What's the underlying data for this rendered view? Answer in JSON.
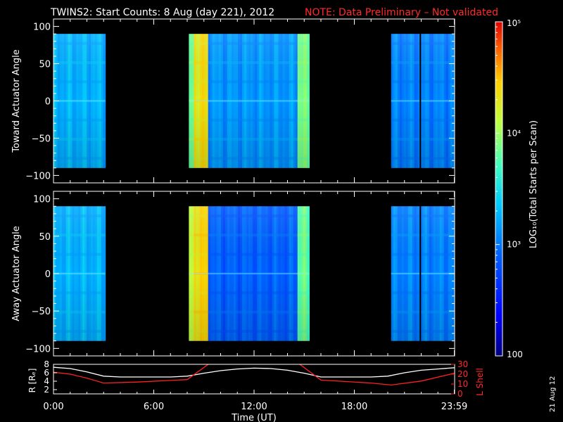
{
  "header": {
    "title": "TWINS2: Start Counts:  8 Aug (day 221), 2012",
    "note": "NOTE: Data Preliminary – Not validated"
  },
  "colors": {
    "background": "#000000",
    "axis": "#ffffff",
    "note": "#ff2a2a",
    "l_shell_line": "#ff2020",
    "r_line": "#ffffff"
  },
  "chart_data": [
    {
      "type": "heatmap",
      "panel": "toward",
      "ylabel": "Toward Actuator Angle",
      "ylim": [
        -110,
        110
      ],
      "yticks": [
        100,
        50,
        0,
        -50,
        -100
      ],
      "data_range": [
        -90,
        90
      ],
      "xlim": [
        0,
        24
      ],
      "blocks": [
        {
          "start": 0.0,
          "end": 3.1,
          "level": 0.42
        },
        {
          "start": 8.1,
          "end": 8.4,
          "level": 0.62
        },
        {
          "start": 8.4,
          "end": 9.25,
          "level": 0.78
        },
        {
          "start": 9.25,
          "end": 14.6,
          "level": 0.38
        },
        {
          "start": 14.6,
          "end": 15.3,
          "level": 0.62
        },
        {
          "start": 20.2,
          "end": 23.99,
          "level": 0.35
        }
      ],
      "gaps": [
        21.95
      ]
    },
    {
      "type": "heatmap",
      "panel": "away",
      "ylabel": "Away Actuator Angle",
      "ylim": [
        -110,
        110
      ],
      "yticks": [
        100,
        50,
        0,
        -50,
        -100
      ],
      "data_range": [
        -90,
        90
      ],
      "xlim": [
        0,
        24
      ],
      "blocks": [
        {
          "start": 0.0,
          "end": 3.1,
          "level": 0.42
        },
        {
          "start": 8.1,
          "end": 8.4,
          "level": 0.7
        },
        {
          "start": 8.4,
          "end": 9.25,
          "level": 0.8
        },
        {
          "start": 9.25,
          "end": 14.6,
          "level": 0.3
        },
        {
          "start": 14.6,
          "end": 15.3,
          "level": 0.6
        },
        {
          "start": 20.2,
          "end": 23.99,
          "level": 0.35
        }
      ],
      "gaps": [
        21.95
      ]
    },
    {
      "type": "line",
      "panel": "orbit",
      "ylabel": "R [Rₑ]",
      "y2label": "L Shell",
      "xlabel": "Time (UT)",
      "xlim": [
        0,
        24
      ],
      "ylim": [
        1,
        8
      ],
      "yticks": [
        2,
        4,
        6,
        8
      ],
      "y2lim": [
        0,
        30
      ],
      "y2ticks": [
        0,
        10,
        20,
        30
      ],
      "xticks": [
        "0:00",
        "6:00",
        "12:00",
        "18:00",
        "23:59"
      ],
      "xtick_values": [
        0,
        6,
        12,
        18,
        23.98
      ],
      "series": [
        {
          "name": "R [Rₑ]",
          "axis": "left",
          "x": [
            0,
            1,
            2,
            3,
            4,
            5,
            6,
            7,
            8,
            9,
            10,
            11,
            12,
            13,
            14,
            15,
            16,
            17,
            18,
            19,
            20,
            21,
            22,
            23,
            24
          ],
          "y": [
            7.3,
            7.0,
            6.2,
            5.2,
            5.0,
            5.0,
            5.0,
            5.0,
            5.2,
            5.9,
            6.5,
            6.9,
            7.1,
            7.0,
            6.6,
            5.9,
            5.0,
            5.0,
            5.0,
            5.0,
            5.2,
            6.0,
            6.6,
            6.9,
            7.2
          ]
        },
        {
          "name": "L Shell",
          "axis": "right",
          "x": [
            0,
            1,
            2,
            3,
            5,
            8,
            9.5,
            14.5,
            16,
            19,
            20.2,
            22,
            24
          ],
          "y": [
            22,
            20,
            16,
            11,
            12,
            14.5,
            33,
            33,
            14,
            11,
            9,
            13,
            21
          ]
        }
      ]
    }
  ],
  "colorbar": {
    "ticks": [
      "10⁵",
      "10⁴",
      "10³",
      "100"
    ],
    "tick_values": [
      5,
      4,
      3,
      2
    ],
    "label": "LOG₁₀(Total Starts per Scan)",
    "range": [
      2,
      5
    ]
  },
  "footer": {
    "date_stamp": "21 Aug 12"
  }
}
